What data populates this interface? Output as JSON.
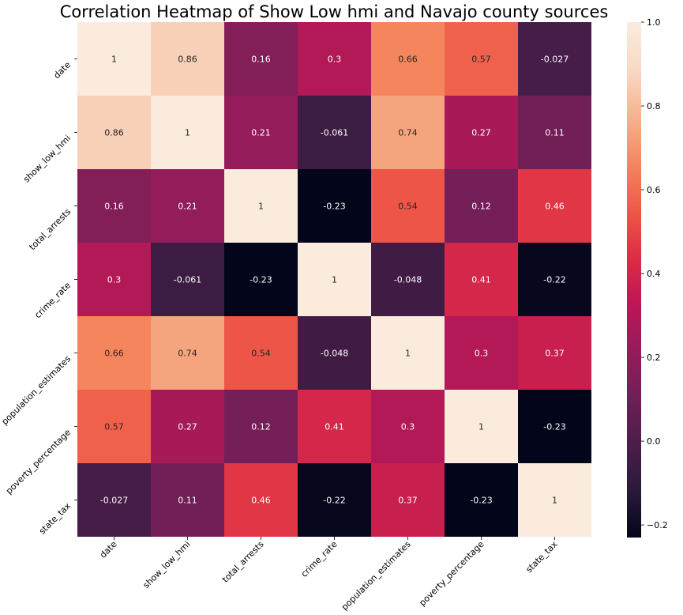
{
  "chart_data": {
    "type": "heatmap",
    "title": "Correlation Heatmap of Show Low hmi and Navajo county sources",
    "x_labels": [
      "date",
      "show_low_hmi",
      "total_arrests",
      "crime_rate",
      "population_estimates",
      "poverty_percentage",
      "state_tax"
    ],
    "y_labels": [
      "date",
      "show_low_hmi",
      "total_arrests",
      "crime_rate",
      "population_estimates",
      "poverty_percentage",
      "state_tax"
    ],
    "values": [
      [
        1,
        0.86,
        0.16,
        0.3,
        0.66,
        0.57,
        -0.027
      ],
      [
        0.86,
        1,
        0.21,
        -0.061,
        0.74,
        0.27,
        0.11
      ],
      [
        0.16,
        0.21,
        1,
        -0.23,
        0.54,
        0.12,
        0.46
      ],
      [
        0.3,
        -0.061,
        -0.23,
        1,
        -0.048,
        0.41,
        -0.22
      ],
      [
        0.66,
        0.74,
        0.54,
        -0.048,
        1,
        0.3,
        0.37
      ],
      [
        0.57,
        0.27,
        0.12,
        0.41,
        0.3,
        1,
        -0.23
      ],
      [
        -0.027,
        0.11,
        0.46,
        -0.22,
        0.37,
        -0.23,
        1
      ]
    ],
    "annotations": [
      [
        "1",
        "0.86",
        "0.16",
        "0.3",
        "0.66",
        "0.57",
        "-0.027"
      ],
      [
        "0.86",
        "1",
        "0.21",
        "-0.061",
        "0.74",
        "0.27",
        "0.11"
      ],
      [
        "0.16",
        "0.21",
        "1",
        "-0.23",
        "0.54",
        "0.12",
        "0.46"
      ],
      [
        "0.3",
        "-0.061",
        "-0.23",
        "1",
        "-0.048",
        "0.41",
        "-0.22"
      ],
      [
        "0.66",
        "0.74",
        "0.54",
        "-0.048",
        "1",
        "0.3",
        "0.37"
      ],
      [
        "0.57",
        "0.27",
        "0.12",
        "0.41",
        "0.3",
        "1",
        "-0.23"
      ],
      [
        "-0.027",
        "0.11",
        "0.46",
        "-0.22",
        "0.37",
        "-0.23",
        "1"
      ]
    ],
    "colorbar": {
      "min": -0.23,
      "max": 1.0,
      "ticks": [
        -0.2,
        0.0,
        0.2,
        0.4,
        0.6,
        0.8,
        1.0
      ],
      "tick_labels": [
        "−0.2",
        "0.0",
        "0.2",
        "0.4",
        "0.6",
        "0.8",
        "1.0"
      ],
      "colormap": "rocket",
      "colormap_stops": [
        "#03051a",
        "#2b1a3a",
        "#4c1d4b",
        "#701f57",
        "#961c5b",
        "#bd1655",
        "#de2e44",
        "#ee5a47",
        "#f4875e",
        "#f6b48e",
        "#f8dac5",
        "#faebdd"
      ]
    },
    "label_colors": {
      "light": "#ffffff",
      "dark": "#262626"
    }
  }
}
